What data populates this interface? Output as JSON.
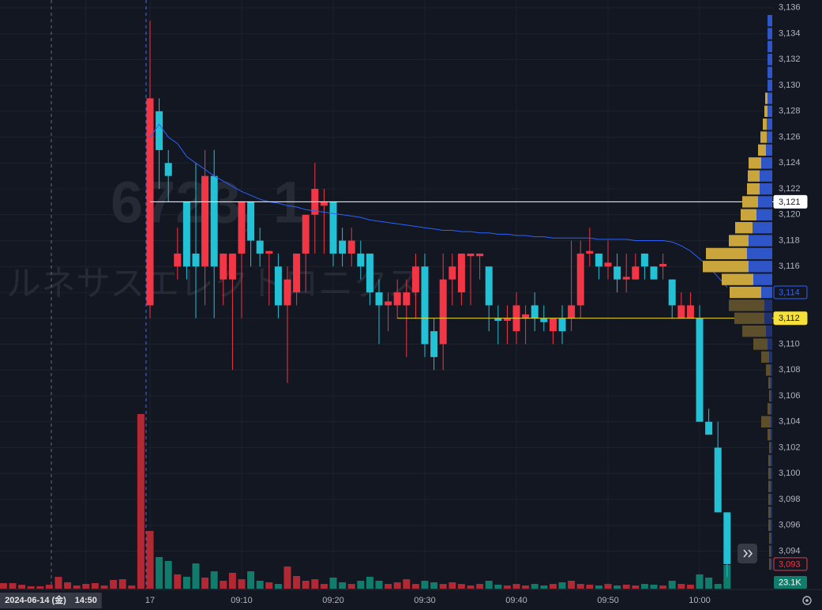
{
  "chart_data": {
    "type": "candlestick",
    "watermark": "6723, 1",
    "watermark_sub": "ルネサスエレクトロニクス",
    "date_label": "2024-06-14 (金)",
    "categories": [
      null,
      null,
      null,
      null,
      null,
      null,
      null,
      null,
      null,
      "14:50",
      null,
      null,
      null,
      null,
      null,
      null,
      "17",
      null,
      null,
      null,
      null,
      null,
      null,
      null,
      null,
      null,
      "09:10",
      null,
      null,
      null,
      null,
      null,
      null,
      null,
      null,
      null,
      "09:20",
      null,
      null,
      null,
      null,
      null,
      null,
      null,
      null,
      null,
      "09:30",
      null,
      null,
      null,
      null,
      null,
      null,
      null,
      null,
      null,
      "09:40",
      null,
      null,
      null,
      null,
      null,
      null,
      null,
      null,
      null,
      "09:50",
      null,
      null,
      null,
      null,
      null,
      null,
      null,
      null,
      null,
      "10:00",
      null,
      null,
      null
    ],
    "open": [
      null,
      null,
      null,
      null,
      null,
      null,
      null,
      null,
      null,
      null,
      null,
      null,
      null,
      null,
      null,
      null,
      3113,
      3128,
      3124,
      3116,
      3121,
      3117,
      3116,
      3123,
      3115,
      3115,
      3117,
      3121,
      3118,
      3117,
      3116,
      3113,
      3114,
      3117,
      3120,
      3120.7,
      3121,
      3118,
      3117,
      3117,
      3117,
      3114,
      3113,
      3113,
      3113,
      3114,
      3116,
      3111,
      3110,
      3115,
      3114,
      3116.8,
      3116.8,
      3116,
      3112,
      3111.8,
      3111,
      3112,
      3113,
      3112,
      3111,
      3112,
      3112,
      3113,
      3117,
      3117,
      3116,
      3116,
      3115,
      3115,
      3117,
      3116,
      3116,
      3115,
      3112,
      3112,
      3112,
      3104,
      3102,
      3097
    ],
    "high": [
      null,
      null,
      null,
      null,
      null,
      null,
      null,
      null,
      null,
      null,
      null,
      null,
      null,
      null,
      null,
      null,
      3135,
      3129,
      3125,
      3119,
      3121,
      3124,
      3125,
      3125,
      3117,
      3117,
      3121,
      3121,
      3119,
      3117,
      3117,
      3116,
      3117,
      3120,
      3124,
      3122,
      3121,
      3119,
      3119,
      3118,
      3117,
      3115,
      3114,
      3115,
      3115,
      3117,
      3117,
      3112,
      3117,
      3117,
      3117,
      3117,
      3117,
      3116,
      3113,
      3113,
      3114,
      3113,
      3114,
      3113,
      3112,
      3113,
      3118,
      3118,
      3119,
      3117,
      3118,
      3117,
      3117,
      3117,
      3117,
      3116,
      3117,
      3115,
      3114,
      3114,
      3113,
      3105,
      3104,
      3097
    ],
    "low": [
      null,
      null,
      null,
      null,
      null,
      null,
      null,
      null,
      null,
      null,
      null,
      null,
      null,
      null,
      null,
      null,
      3112,
      3122,
      3121,
      3115,
      3115,
      3112,
      3113,
      3112,
      3113,
      3108,
      3112,
      3116,
      3116,
      3113,
      3112,
      3107,
      3113,
      3114,
      3117,
      3117,
      3116,
      3116,
      3116,
      3115,
      3113,
      3110,
      3111,
      3112,
      3109,
      3112,
      3109,
      3108,
      3108,
      3113,
      3113,
      3113,
      3115,
      3111,
      3110,
      3110,
      3110,
      3110,
      3111,
      3111,
      3110,
      3110,
      3111,
      3112,
      3116,
      3115,
      3115,
      3114,
      3114,
      3115,
      3115,
      3115,
      3115,
      3112,
      3112,
      3112,
      3104,
      3103,
      3097,
      3092
    ],
    "close": [
      null,
      null,
      null,
      null,
      null,
      null,
      null,
      null,
      null,
      null,
      null,
      null,
      null,
      null,
      null,
      null,
      3129,
      3125,
      3123,
      3117,
      3116,
      3116,
      3123,
      3116,
      3117,
      3117,
      3121,
      3118,
      3117,
      3117.2,
      3113,
      3115,
      3117,
      3120,
      3122,
      3121,
      3117,
      3117,
      3118,
      3116,
      3114,
      3113,
      3113.3,
      3114,
      3114,
      3116,
      3110,
      3109,
      3115,
      3116,
      3117,
      3117,
      3117,
      3113,
      3111.8,
      3112,
      3113,
      3112.3,
      3112,
      3111.7,
      3112,
      3111,
      3113,
      3117,
      3117.2,
      3116,
      3116.3,
      3115,
      3115.2,
      3116,
      3116,
      3115,
      3116.2,
      3113,
      3113,
      3113,
      3104,
      3103,
      3097,
      3093
    ],
    "up_color": "#f23645",
    "down_color": "#22c1d6",
    "volume": {
      "values": [
        5.4,
        5.4,
        3.8,
        2.3,
        2.3,
        3.8,
        11.5,
        6.2,
        3.1,
        4.6,
        5.4,
        3.1,
        8.5,
        9.2,
        3.1,
        170,
        56.2,
        30.8,
        27,
        13.9,
        11.6,
        24.6,
        10.8,
        16.9,
        7.7,
        15.4,
        9.2,
        16.9,
        7.7,
        6.2,
        4.6,
        21.6,
        12.3,
        7.7,
        9.2,
        4.6,
        10.8,
        6.2,
        4.6,
        7.7,
        11.6,
        7.7,
        4.6,
        6.2,
        9.2,
        4.6,
        7.7,
        6.2,
        4.6,
        6.2,
        4.6,
        3.1,
        4.6,
        7.7,
        3.9,
        3.1,
        4.6,
        3.1,
        4.6,
        3.1,
        4.6,
        6.2,
        7.7,
        4.6,
        3.9,
        3.1,
        4.6,
        3.1,
        3.9,
        3.1,
        4.6,
        3.9,
        3.1,
        7.7,
        4.6,
        3.9,
        13.9,
        10.8,
        4.6,
        23.1
      ],
      "value_labels": [
        null,
        null,
        null,
        null,
        null,
        null,
        null,
        null,
        null,
        null,
        null,
        null,
        null,
        null,
        null,
        null,
        null,
        null,
        null,
        null,
        null,
        null,
        null,
        null,
        null,
        null,
        null,
        null,
        null,
        null,
        null,
        null,
        null,
        null,
        null,
        null,
        null,
        null,
        null,
        null,
        null,
        null,
        null,
        null,
        null,
        null,
        null,
        null,
        null,
        null,
        null,
        null,
        null,
        null,
        null,
        null,
        null,
        null,
        null,
        null,
        null,
        null,
        null,
        null,
        null,
        null,
        null,
        null,
        null,
        null,
        null,
        null,
        null,
        null,
        null,
        null,
        null,
        null,
        null,
        "23.1K"
      ],
      "vlim": [
        0,
        200
      ],
      "up_color": "#b22833",
      "down_color": "#0f7c6c"
    },
    "vwap": {
      "color": "#2962ff",
      "values": [
        null,
        null,
        null,
        null,
        null,
        null,
        null,
        null,
        null,
        null,
        null,
        null,
        null,
        null,
        null,
        null,
        3126,
        3127,
        3126,
        3125.5,
        3124.5,
        3124,
        3123.5,
        3123,
        3122.6,
        3122.2,
        3121.8,
        3121.5,
        3121.2,
        3121,
        3120.9,
        3120.7,
        3120.6,
        3120.4,
        3120.3,
        3120.2,
        3120.1,
        3120,
        3119.9,
        3119.8,
        3119.6,
        3119.5,
        3119.4,
        3119.3,
        3119.2,
        3119.1,
        3119,
        3118.9,
        3118.8,
        3118.8,
        3118.7,
        3118.7,
        3118.6,
        3118.6,
        3118.5,
        3118.5,
        3118.4,
        3118.4,
        3118.3,
        3118.3,
        3118.2,
        3118.2,
        3118.2,
        3118.2,
        3118.2,
        3118.1,
        3118.1,
        3118.1,
        3118.1,
        3118,
        3118,
        3118,
        3118,
        3117.9,
        3117.6,
        3117.2,
        3116.6,
        3116,
        3115.2,
        3114.4
      ]
    },
    "price_lines": [
      {
        "value": 3121,
        "label": "3,121",
        "color": "#ffffff",
        "from": 16
      },
      {
        "value": 3112,
        "label": "3,112",
        "color": "#f5e13a",
        "from": 43
      },
      {
        "value": 3114,
        "label": "3,114",
        "color": "#2962ff"
      },
      {
        "value": 3093,
        "label": "3,093",
        "color": "#f23645"
      }
    ],
    "profile": {
      "prices": [
        3135,
        3134,
        3133,
        3132,
        3131,
        3130,
        3129,
        3128,
        3127,
        3126,
        3125,
        3124,
        3123,
        3122,
        3121,
        3120,
        3119,
        3118,
        3117,
        3116,
        3115,
        3114,
        3113,
        3112,
        3111,
        3110,
        3109,
        3108,
        3107,
        3106,
        3105,
        3104,
        3103,
        3102,
        3101,
        3100,
        3099,
        3098,
        3097,
        3096,
        3095,
        3094,
        3093
      ],
      "up": [
        0,
        0,
        0,
        0,
        0,
        0,
        3,
        4,
        5,
        8,
        10,
        16,
        15,
        16,
        20,
        20,
        22,
        25,
        52,
        58,
        40,
        40,
        45,
        38,
        30,
        18,
        10,
        6,
        3,
        2,
        4,
        12,
        4,
        2,
        3,
        3,
        3,
        3,
        3,
        3,
        2,
        2,
        2
      ],
      "down": [
        6,
        6,
        6,
        6,
        6,
        6,
        6,
        6,
        7,
        7,
        8,
        14,
        16,
        16,
        18,
        20,
        25,
        30,
        32,
        30,
        24,
        14,
        10,
        10,
        8,
        6,
        4,
        2,
        2,
        2,
        2,
        2,
        2,
        2,
        2,
        2,
        2,
        2,
        2,
        2,
        2,
        2,
        2
      ],
      "value_area": [
        3114,
        3136
      ],
      "up_color": "#c9a53b",
      "down_color": "#2f56c9",
      "up_dim": "#5e4f2c",
      "down_dim": "#1f3170"
    },
    "ylim": [
      3091.1,
      3136.6
    ],
    "yticks": [
      {
        "value": 3094,
        "label": "3,094"
      },
      {
        "value": 3096,
        "label": "3,096"
      },
      {
        "value": 3098,
        "label": "3,098"
      },
      {
        "value": 3100,
        "label": "3,100"
      },
      {
        "value": 3102,
        "label": "3,102"
      },
      {
        "value": 3104,
        "label": "3,104"
      },
      {
        "value": 3106,
        "label": "3,106"
      },
      {
        "value": 3108,
        "label": "3,108"
      },
      {
        "value": 3110,
        "label": "3,110"
      },
      {
        "value": 3112,
        "label": "3,112"
      },
      {
        "value": 3114,
        "label": "3,114"
      },
      {
        "value": 3116,
        "label": "3,116"
      },
      {
        "value": 3118,
        "label": "3,118"
      },
      {
        "value": 3120,
        "label": "3,120"
      },
      {
        "value": 3122,
        "label": "3,122"
      },
      {
        "value": 3124,
        "label": "3,124"
      },
      {
        "value": 3126,
        "label": "3,126"
      },
      {
        "value": 3128,
        "label": "3,128"
      },
      {
        "value": 3130,
        "label": "3,130"
      },
      {
        "value": 3132,
        "label": "3,132"
      },
      {
        "value": 3134,
        "label": "3,134"
      },
      {
        "value": 3136,
        "label": "3,136"
      }
    ],
    "grid": true
  }
}
